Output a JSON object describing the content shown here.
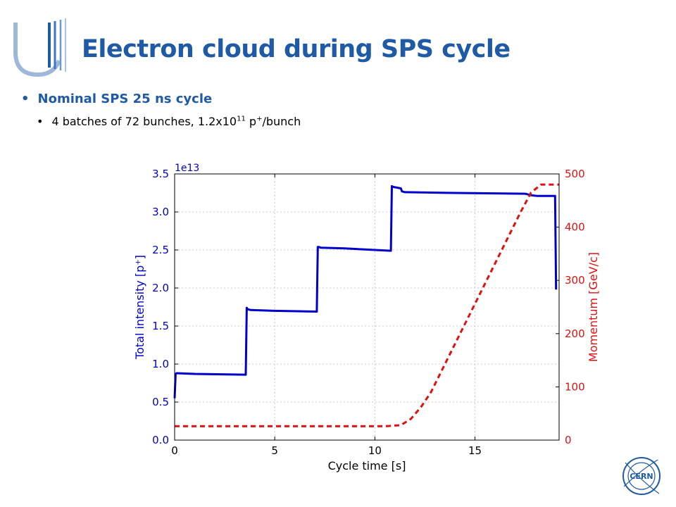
{
  "slide": {
    "title": "Electron cloud during SPS cycle",
    "bullet_1": "Nominal SPS 25 ns cycle",
    "bullet_2_pre": "4 batches of 72 bunches, 1.2x10",
    "bullet_2_exp": "11",
    "bullet_2_mid": " p",
    "bullet_2_sup2": "+",
    "bullet_2_post": "/bunch",
    "cern_logo_text": "CERN"
  },
  "colors": {
    "title": "#1f5aa6",
    "intensity": "#0000cc",
    "momentum": "#e01010"
  },
  "chart_data": {
    "type": "line",
    "xlabel": "Cycle time [s]",
    "ylabel_left": "Total intensity [p",
    "ylabel_left_sup": "+",
    "ylabel_left_end": "]",
    "ylabel_right": "Momentum [GeV/c]",
    "left_axis_multiplier": "1e13",
    "xlim": [
      0,
      19.2
    ],
    "ylim_left": [
      0,
      3.5
    ],
    "ylim_right": [
      0,
      500
    ],
    "x_ticks": [
      0,
      5,
      10,
      15
    ],
    "x_tick_labels": [
      "0",
      "5",
      "10",
      "15"
    ],
    "y_left_ticks": [
      0.0,
      0.5,
      1.0,
      1.5,
      2.0,
      2.5,
      3.0,
      3.5
    ],
    "y_left_tick_labels": [
      "0.0",
      "0.5",
      "1.0",
      "1.5",
      "2.0",
      "2.5",
      "3.0",
      "3.5"
    ],
    "y_right_ticks": [
      0,
      100,
      200,
      300,
      400,
      500
    ],
    "y_right_tick_labels": [
      "0",
      "100",
      "200",
      "300",
      "400",
      "500"
    ],
    "grid": true,
    "series": [
      {
        "axis": "left",
        "style": "solid",
        "x": [
          0,
          0.05,
          0.1,
          1,
          3.55,
          3.6,
          3.65,
          3.8,
          5,
          7.1,
          7.15,
          7.2,
          7.3,
          8.5,
          10.8,
          10.85,
          10.9,
          11.3,
          11.35,
          11.5,
          14,
          17.5,
          17.8,
          18.1,
          19.0,
          19.05
        ],
        "y": [
          0.55,
          0.87,
          0.88,
          0.87,
          0.86,
          1.74,
          1.72,
          1.71,
          1.7,
          1.69,
          2.54,
          2.54,
          2.53,
          2.52,
          2.49,
          3.34,
          3.33,
          3.31,
          3.27,
          3.26,
          3.25,
          3.24,
          3.22,
          3.21,
          3.21,
          1.98
        ]
      },
      {
        "axis": "right",
        "style": "dashed",
        "x": [
          0,
          10.5,
          11.3,
          11.8,
          12.3,
          12.8,
          17.3,
          17.8,
          18.3,
          19.2
        ],
        "y": [
          26,
          26,
          28,
          40,
          62,
          90,
          430,
          465,
          480,
          480
        ]
      }
    ]
  }
}
